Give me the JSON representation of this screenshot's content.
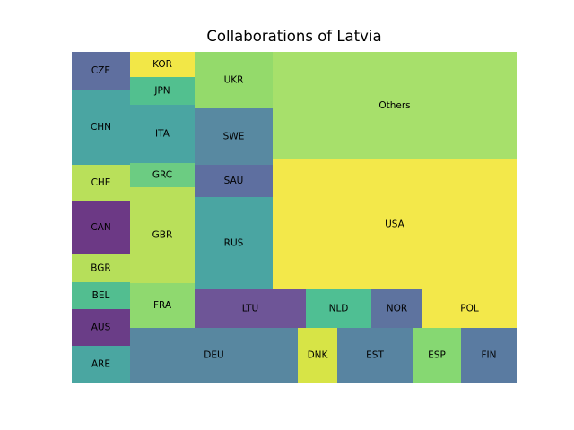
{
  "chart_data": {
    "type": "treemap",
    "title": "Collaborations of Latvia",
    "xlabel": "",
    "ylabel": "",
    "grid": false,
    "legend": "none",
    "tiles": [
      {
        "label": "AUS",
        "color": "#6a3d87"
      },
      {
        "label": "ARE",
        "color": "#4aa6a1"
      },
      {
        "label": "BEL",
        "color": "#52be90"
      },
      {
        "label": "BGR",
        "color": "#b6df5a"
      },
      {
        "label": "CAN",
        "color": "#6c3985"
      },
      {
        "label": "CHE",
        "color": "#b9e05a"
      },
      {
        "label": "CHN",
        "color": "#4aa5a2"
      },
      {
        "label": "CZE",
        "color": "#5f6f9f"
      },
      {
        "label": "DEU",
        "color": "#5887a0"
      },
      {
        "label": "FRA",
        "color": "#8fd96f"
      },
      {
        "label": "GBR",
        "color": "#b9e05a"
      },
      {
        "label": "GRC",
        "color": "#6ccc82"
      },
      {
        "label": "ITA",
        "color": "#4aa5a2"
      },
      {
        "label": "JPN",
        "color": "#52c08f"
      },
      {
        "label": "KOR",
        "color": "#f2e747"
      },
      {
        "label": "LTU",
        "color": "#6e5597"
      },
      {
        "label": "DNK",
        "color": "#d7e446"
      },
      {
        "label": "EST",
        "color": "#5884a1"
      },
      {
        "label": "ESP",
        "color": "#86d872"
      },
      {
        "label": "FIN",
        "color": "#5a7ba1"
      },
      {
        "label": "NLD",
        "color": "#4fbf93"
      },
      {
        "label": "NOR",
        "color": "#5e739f"
      },
      {
        "label": "POL",
        "color": "#f3e84a"
      },
      {
        "label": "RUS",
        "color": "#4aa5a2"
      },
      {
        "label": "SAU",
        "color": "#5e6fa0"
      },
      {
        "label": "SWE",
        "color": "#5889a1"
      },
      {
        "label": "UKR",
        "color": "#94da6b"
      },
      {
        "label": "USA",
        "color": "#f3e84a"
      },
      {
        "label": "Others",
        "color": "#a7e06b"
      }
    ]
  }
}
